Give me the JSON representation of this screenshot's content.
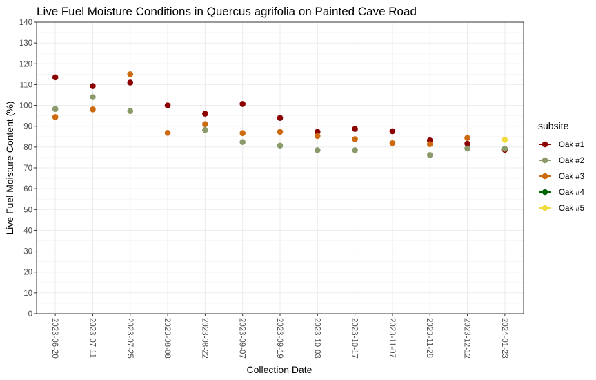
{
  "chart_data": {
    "type": "scatter",
    "title": "Live Fuel Moisture Conditions in Quercus agrifolia on Painted Cave Road",
    "xlabel": "Collection Date",
    "ylabel": "Live Fuel Moisture Content (%)",
    "ylim": [
      0,
      140
    ],
    "yticks": [
      0,
      10,
      20,
      30,
      40,
      50,
      60,
      70,
      80,
      90,
      100,
      110,
      120,
      130,
      140
    ],
    "grid": true,
    "categories": [
      "2023-06-20",
      "2023-07-11",
      "2023-07-25",
      "2023-08-08",
      "2023-08-22",
      "2023-09-07",
      "2023-09-19",
      "2023-10-03",
      "2023-10-17",
      "2023-11-07",
      "2023-11-28",
      "2023-12-12",
      "2024-01-23"
    ],
    "legend": {
      "title": "subsite",
      "position": "right"
    },
    "series": [
      {
        "name": "Oak #1",
        "color": "#8b0000",
        "values": [
          113.5,
          109.3,
          111,
          100,
          96,
          100.7,
          94,
          87.3,
          88.7,
          87.6,
          83.2,
          81.6,
          78.7
        ]
      },
      {
        "name": "Oak #2",
        "color": "#8b9a6b",
        "values": [
          98.3,
          104,
          97.3,
          null,
          88.2,
          82.4,
          80.7,
          78.5,
          78.5,
          null,
          76.2,
          79.3,
          79.2
        ]
      },
      {
        "name": "Oak #3",
        "color": "#cc6a10",
        "values": [
          94.4,
          98.1,
          115,
          86.8,
          91,
          86.7,
          87.3,
          85.3,
          83.8,
          81.9,
          81.4,
          84.4,
          null
        ]
      },
      {
        "name": "Oak #4",
        "color": "#006400",
        "values": [
          null,
          null,
          null,
          null,
          null,
          null,
          null,
          null,
          null,
          null,
          null,
          null,
          null
        ]
      },
      {
        "name": "Oak #5",
        "color": "#f0dc3a",
        "values": [
          null,
          null,
          null,
          null,
          null,
          null,
          null,
          null,
          null,
          null,
          null,
          null,
          83.5
        ]
      }
    ]
  }
}
